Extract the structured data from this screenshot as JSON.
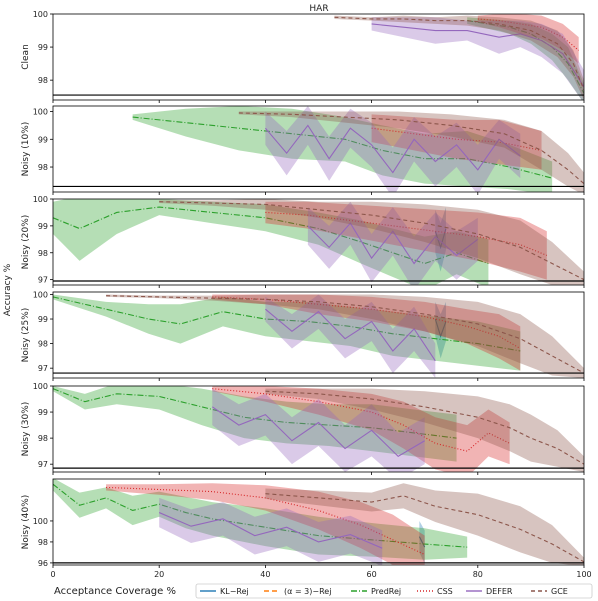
{
  "figure": {
    "title": "HAR",
    "shared_ylabel": "Accuracy %",
    "xlabel": "Acceptance Coverage %"
  },
  "legend": [
    {
      "label": "KL−Rej",
      "color": "#1f77b4",
      "dash": ""
    },
    {
      "label": "(α = 3)−Rej",
      "color": "#ff7f0e",
      "dash": "5,3"
    },
    {
      "label": "PredRej",
      "color": "#2ca02c",
      "dash": "6,2,1,2"
    },
    {
      "label": "CSS",
      "color": "#d62728",
      "dash": "1,2"
    },
    {
      "label": "DEFER",
      "color": "#9467bd",
      "dash": ""
    },
    {
      "label": "GCE",
      "color": "#8c564b",
      "dash": "4,3"
    }
  ],
  "chart_data": [
    {
      "type": "line",
      "panel_label": "Clean",
      "xlim": [
        0,
        100
      ],
      "ylim": [
        97.4,
        100
      ],
      "xticks": [
        0,
        20,
        40,
        60,
        80,
        100
      ],
      "yticks": [
        98,
        99,
        100
      ],
      "baseline": 97.55,
      "series": [
        {
          "name": "KL−Rej",
          "x": [],
          "y": []
        },
        {
          "name": "(α = 3)−Rej",
          "x": [],
          "y": []
        },
        {
          "name": "PredRej",
          "x": [
            78,
            82,
            86,
            90,
            94,
            97,
            100
          ],
          "y": [
            99.8,
            99.7,
            99.6,
            99.4,
            99.0,
            98.5,
            97.6
          ],
          "band": [
            0.1,
            0.15,
            0.2,
            0.3,
            0.4,
            0.5,
            0.3
          ]
        },
        {
          "name": "CSS",
          "x": [
            80,
            84,
            88,
            92,
            96,
            99
          ],
          "y": [
            99.85,
            99.8,
            99.7,
            99.6,
            99.3,
            98.9
          ],
          "band": [
            0.1,
            0.2,
            0.3,
            0.35,
            0.4,
            0.4
          ]
        },
        {
          "name": "DEFER",
          "x": [
            60,
            66,
            72,
            78,
            84,
            88,
            92,
            96,
            100
          ],
          "y": [
            99.7,
            99.6,
            99.5,
            99.5,
            99.3,
            99.4,
            99.2,
            98.8,
            97.8
          ],
          "band": [
            0.2,
            0.3,
            0.4,
            0.3,
            0.5,
            0.4,
            0.5,
            0.6,
            0.5
          ]
        },
        {
          "name": "GCE",
          "x": [
            53,
            60,
            66,
            72,
            78,
            84,
            90,
            95,
            98,
            100
          ],
          "y": [
            99.9,
            99.85,
            99.85,
            99.8,
            99.8,
            99.7,
            99.5,
            99.1,
            98.5,
            97.7
          ],
          "band": [
            0.05,
            0.05,
            0.1,
            0.1,
            0.15,
            0.2,
            0.3,
            0.4,
            0.4,
            0.3
          ]
        }
      ]
    },
    {
      "type": "line",
      "panel_label": "Noisy (10%)",
      "xlim": [
        0,
        100
      ],
      "ylim": [
        97.1,
        100.2
      ],
      "xticks": [
        0,
        20,
        40,
        60,
        80,
        100
      ],
      "yticks": [
        98,
        99,
        100
      ],
      "baseline": 97.3,
      "series": [
        {
          "name": "KL−Rej",
          "x": [],
          "y": []
        },
        {
          "name": "(α = 3)−Rej",
          "x": [],
          "y": []
        },
        {
          "name": "PredRej",
          "x": [
            15,
            25,
            35,
            45,
            55,
            62,
            70,
            78,
            86,
            94
          ],
          "y": [
            99.8,
            99.6,
            99.4,
            99.2,
            99.0,
            98.6,
            98.3,
            98.3,
            98.0,
            97.6
          ],
          "band": [
            0.1,
            0.5,
            0.8,
            0.9,
            0.8,
            0.9,
            0.9,
            1.0,
            0.8,
            0.6
          ]
        },
        {
          "name": "CSS",
          "x": [
            60,
            68,
            76,
            84,
            92
          ],
          "y": [
            99.4,
            99.2,
            99.0,
            98.9,
            98.6
          ],
          "band": [
            0.5,
            0.6,
            0.7,
            0.8,
            0.7
          ]
        },
        {
          "name": "DEFER",
          "x": [
            40,
            44,
            48,
            52,
            56,
            60,
            64,
            68,
            72,
            76,
            80,
            84,
            88
          ],
          "y": [
            99.4,
            98.5,
            99.5,
            98.3,
            99.4,
            98.8,
            97.8,
            99.0,
            98.2,
            98.8,
            97.9,
            99.0,
            98.4
          ],
          "band": [
            0.6,
            0.8,
            0.7,
            0.8,
            0.7,
            0.8,
            0.9,
            0.8,
            0.9,
            0.8,
            0.9,
            0.7,
            0.8
          ]
        },
        {
          "name": "GCE",
          "x": [
            35,
            45,
            55,
            65,
            75,
            85,
            92,
            97,
            100
          ],
          "y": [
            99.95,
            99.9,
            99.8,
            99.7,
            99.5,
            99.2,
            98.6,
            97.9,
            97.4
          ],
          "band": [
            0.05,
            0.1,
            0.2,
            0.3,
            0.4,
            0.5,
            0.7,
            0.6,
            0.4
          ]
        }
      ]
    },
    {
      "type": "line",
      "panel_label": "Noisy (20%)",
      "xlim": [
        0,
        100
      ],
      "ylim": [
        96.8,
        100
      ],
      "xticks": [
        0,
        20,
        40,
        60,
        80,
        100
      ],
      "yticks": [
        97,
        98,
        99,
        100
      ],
      "baseline": 96.95,
      "series": [
        {
          "name": "KL−Rej",
          "x": [
            72,
            73,
            74
          ],
          "y": [
            98.8,
            98.2,
            98.9
          ],
          "band": [
            0.8,
            0.9,
            0.8
          ]
        },
        {
          "name": "(α = 3)−Rej",
          "x": [],
          "y": []
        },
        {
          "name": "PredRej",
          "x": [
            0,
            5,
            12,
            20,
            30,
            40,
            50,
            58,
            64,
            70,
            76,
            82
          ],
          "y": [
            99.3,
            98.9,
            99.5,
            99.7,
            99.5,
            99.3,
            98.9,
            98.4,
            98.0,
            97.6,
            98.0,
            97.6
          ],
          "band": [
            0.6,
            1.2,
            0.8,
            0.3,
            0.4,
            0.5,
            0.6,
            0.8,
            0.9,
            1.0,
            0.8,
            0.9
          ]
        },
        {
          "name": "CSS",
          "x": [
            40,
            48,
            56,
            64,
            72,
            80,
            88,
            93
          ],
          "y": [
            99.5,
            99.4,
            99.2,
            99.0,
            98.8,
            98.6,
            98.3,
            97.9
          ],
          "band": [
            0.4,
            0.5,
            0.6,
            0.7,
            0.8,
            0.9,
            1.0,
            0.9
          ]
        },
        {
          "name": "DEFER",
          "x": [
            48,
            52,
            56,
            60,
            64,
            68,
            72,
            76,
            80
          ],
          "y": [
            99.0,
            98.2,
            99.1,
            97.8,
            98.8,
            97.6,
            98.6,
            97.9,
            98.5
          ],
          "band": [
            0.7,
            0.8,
            0.8,
            0.9,
            0.9,
            1.0,
            0.9,
            0.9,
            0.8
          ]
        },
        {
          "name": "GCE",
          "x": [
            20,
            30,
            40,
            50,
            60,
            70,
            80,
            88,
            94,
            100
          ],
          "y": [
            99.9,
            99.85,
            99.8,
            99.6,
            99.4,
            99.1,
            98.7,
            98.2,
            97.6,
            97.0
          ],
          "band": [
            0.05,
            0.1,
            0.2,
            0.3,
            0.5,
            0.7,
            0.9,
            1.0,
            0.8,
            0.3
          ]
        }
      ]
    },
    {
      "type": "line",
      "panel_label": "Noisy (25%)",
      "xlim": [
        0,
        100
      ],
      "ylim": [
        96.6,
        100.1
      ],
      "xticks": [
        0,
        20,
        40,
        60,
        80,
        100
      ],
      "yticks": [
        97,
        98,
        99,
        100
      ],
      "baseline": 96.8,
      "series": [
        {
          "name": "KL−Rej",
          "x": [
            72,
            73,
            74
          ],
          "y": [
            99.0,
            98.3,
            98.9
          ],
          "band": [
            0.7,
            0.9,
            0.8
          ]
        },
        {
          "name": "(α = 3)−Rej",
          "x": [],
          "y": []
        },
        {
          "name": "PredRej",
          "x": [
            0,
            10,
            18,
            24,
            32,
            40,
            48,
            56,
            64,
            72,
            80,
            88
          ],
          "y": [
            99.9,
            99.4,
            99.0,
            98.8,
            99.3,
            99.0,
            98.9,
            98.7,
            98.4,
            98.2,
            98.0,
            97.7
          ],
          "band": [
            0.1,
            0.3,
            0.6,
            0.8,
            0.6,
            0.7,
            0.8,
            0.8,
            0.9,
            0.9,
            0.9,
            0.8
          ]
        },
        {
          "name": "CSS",
          "x": [
            30,
            40,
            50,
            60,
            70,
            78,
            84,
            88
          ],
          "y": [
            99.9,
            99.8,
            99.6,
            99.4,
            99.1,
            98.7,
            98.3,
            97.8
          ],
          "band": [
            0.1,
            0.2,
            0.4,
            0.5,
            0.6,
            0.7,
            0.9,
            0.9
          ]
        },
        {
          "name": "DEFER",
          "x": [
            40,
            45,
            50,
            55,
            60,
            64,
            68,
            72
          ],
          "y": [
            99.4,
            98.5,
            99.3,
            98.2,
            98.9,
            97.7,
            98.6,
            97.3
          ],
          "band": [
            0.5,
            0.7,
            0.7,
            0.8,
            0.8,
            0.9,
            0.9,
            0.7
          ]
        },
        {
          "name": "GCE",
          "x": [
            10,
            20,
            30,
            40,
            50,
            60,
            70,
            80,
            88,
            94,
            100
          ],
          "y": [
            99.95,
            99.9,
            99.85,
            99.8,
            99.7,
            99.5,
            99.2,
            98.8,
            98.2,
            97.5,
            96.8
          ],
          "band": [
            0.05,
            0.05,
            0.1,
            0.2,
            0.3,
            0.5,
            0.7,
            0.9,
            1.0,
            0.8,
            0.2
          ]
        }
      ]
    },
    {
      "type": "line",
      "panel_label": "Noisy (30%)",
      "xlim": [
        0,
        100
      ],
      "ylim": [
        96.7,
        100
      ],
      "xticks": [
        0,
        20,
        40,
        60,
        80,
        100
      ],
      "yticks": [
        97,
        98,
        99,
        100
      ],
      "baseline": 96.85,
      "series": [
        {
          "name": "KL−Rej",
          "x": [],
          "y": []
        },
        {
          "name": "(α = 3)−Rej",
          "x": [],
          "y": []
        },
        {
          "name": "PredRej",
          "x": [
            0,
            6,
            12,
            20,
            28,
            36,
            44,
            52,
            60,
            68,
            76
          ],
          "y": [
            99.9,
            99.4,
            99.7,
            99.6,
            99.2,
            98.8,
            98.6,
            98.5,
            98.4,
            98.2,
            98.0
          ],
          "band": [
            0.1,
            0.3,
            0.4,
            0.5,
            0.7,
            0.8,
            0.8,
            0.8,
            0.9,
            0.9,
            0.9
          ]
        },
        {
          "name": "CSS",
          "x": [
            30,
            40,
            50,
            60,
            66,
            72,
            78,
            82,
            86
          ],
          "y": [
            99.9,
            99.7,
            99.4,
            99.0,
            98.5,
            97.8,
            97.5,
            98.2,
            97.8
          ],
          "band": [
            0.1,
            0.3,
            0.5,
            0.7,
            0.9,
            1.0,
            1.0,
            0.9,
            0.8
          ]
        },
        {
          "name": "DEFER",
          "x": [
            30,
            35,
            40,
            45,
            50,
            55,
            60,
            65,
            70
          ],
          "y": [
            99.2,
            98.5,
            98.9,
            97.9,
            98.6,
            97.6,
            98.3,
            97.3,
            97.9
          ],
          "band": [
            0.7,
            0.8,
            0.8,
            0.9,
            0.9,
            0.9,
            1.0,
            0.9,
            0.9
          ]
        },
        {
          "name": "GCE",
          "x": [
            40,
            50,
            60,
            70,
            80,
            86,
            90,
            95,
            100
          ],
          "y": [
            99.8,
            99.7,
            99.5,
            99.2,
            98.8,
            98.4,
            98.0,
            97.6,
            97.0
          ],
          "band": [
            0.1,
            0.2,
            0.4,
            0.6,
            0.8,
            0.9,
            0.9,
            0.7,
            0.3
          ]
        }
      ]
    },
    {
      "type": "line",
      "panel_label": "Noisy (40%)",
      "xlim": [
        0,
        100
      ],
      "ylim": [
        95.8,
        104
      ],
      "xticks": [
        0,
        20,
        40,
        60,
        80,
        100
      ],
      "yticks": [
        96,
        98,
        100
      ],
      "baseline": 96.0,
      "series": [
        {
          "name": "KL−Rej",
          "x": [
            69,
            70
          ],
          "y": [
            98.5,
            97.5
          ],
          "band": [
            1.5,
            1.6
          ]
        },
        {
          "name": "(α = 3)−Rej",
          "x": [],
          "y": []
        },
        {
          "name": "PredRej",
          "x": [
            0,
            5,
            10,
            15,
            20,
            25,
            30,
            40,
            50,
            60,
            70,
            78
          ],
          "y": [
            103.5,
            101.5,
            102.2,
            101.0,
            101.6,
            100.8,
            100.2,
            99.4,
            98.6,
            98.2,
            97.8,
            97.5
          ],
          "band": [
            0.6,
            1.2,
            1.0,
            1.4,
            1.2,
            1.5,
            1.6,
            1.8,
            1.8,
            1.6,
            1.5,
            1.0
          ]
        },
        {
          "name": "CSS",
          "x": [
            10,
            20,
            30,
            40,
            50,
            58,
            64,
            70
          ],
          "y": [
            103.2,
            103.0,
            102.8,
            102.2,
            101.0,
            99.6,
            98.2,
            96.8
          ],
          "band": [
            0.3,
            0.5,
            0.8,
            1.2,
            1.8,
            2.2,
            2.4,
            1.8
          ]
        },
        {
          "name": "DEFER",
          "x": [
            20,
            26,
            32,
            38,
            44,
            50,
            56,
            62
          ],
          "y": [
            100.8,
            99.5,
            100.2,
            98.6,
            99.4,
            98.0,
            98.7,
            97.4
          ],
          "band": [
            1.4,
            1.6,
            1.6,
            1.8,
            1.8,
            1.9,
            1.8,
            1.7
          ]
        },
        {
          "name": "GCE",
          "x": [
            40,
            50,
            60,
            66,
            72,
            80,
            88,
            94,
            100
          ],
          "y": [
            102.6,
            102.2,
            101.8,
            102.4,
            101.4,
            100.6,
            99.2,
            97.8,
            96.1
          ],
          "band": [
            0.5,
            0.7,
            0.9,
            1.2,
            1.5,
            2.0,
            2.2,
            1.8,
            0.4
          ]
        }
      ]
    }
  ]
}
